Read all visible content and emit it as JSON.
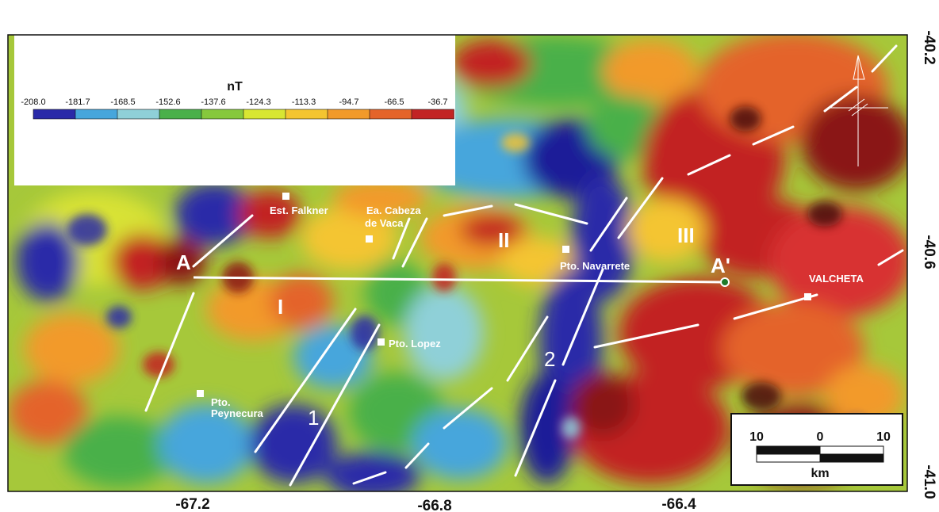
{
  "legend": {
    "title": "nT",
    "ticks": [
      "-208.0",
      "-181.7",
      "-168.5",
      "-152.6",
      "-137.6",
      "-124.3",
      "-113.3",
      "-94.7",
      "-66.5",
      "-36.7"
    ],
    "colors": [
      "#2a2aa8",
      "#46a6dc",
      "#8fd0d8",
      "#4ab04a",
      "#86c83c",
      "#d8e632",
      "#f4c530",
      "#f29a2a",
      "#e4642a",
      "#c22424"
    ]
  },
  "axes": {
    "x_ticks": [
      "-67.2",
      "-66.8",
      "-66.4"
    ],
    "y_ticks": [
      "-40.2",
      "-40.6",
      "-41.0"
    ]
  },
  "places": {
    "falkner": "Est. Falkner",
    "cabeza_1": "Ea. Cabeza",
    "cabeza_2": "de Vaca",
    "navarrete": "Pto. Navarrete",
    "lopez": "Pto. Lopez",
    "peynecura_1": "Pto.",
    "peynecura_2": "Peynecura",
    "valcheta": "VALCHETA"
  },
  "profile": {
    "start": "A",
    "end": "A'"
  },
  "zones": {
    "z1": "I",
    "z2": "II",
    "z3": "III"
  },
  "lineaments": {
    "l1": "1",
    "l2": "2"
  },
  "scalebar": {
    "left": "10",
    "mid": "0",
    "right": "10",
    "unit": "km"
  }
}
